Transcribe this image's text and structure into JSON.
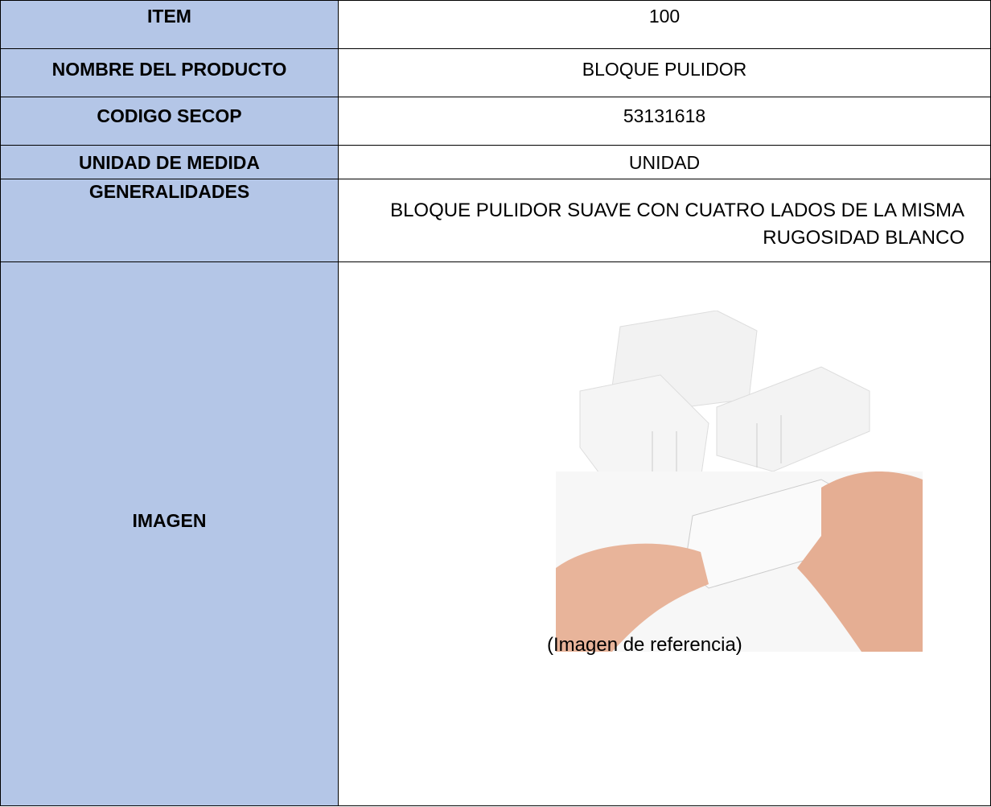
{
  "table": {
    "rows": [
      [
        "ITEM",
        "100"
      ],
      [
        "NOMBRE DEL PRODUCTO",
        "BLOQUE PULIDOR"
      ],
      [
        "CODIGO SECOP",
        "53131618"
      ],
      [
        "UNIDAD DE MEDIDA",
        "UNIDAD"
      ],
      [
        "GENERALIDADES",
        "BLOQUE PULIDOR SUAVE CON CUATRO LADOS DE LA MISMA RUGOSIDAD BLANCO"
      ],
      [
        "IMAGEN"
      ]
    ],
    "image_caption": "(Imagen de referencia)"
  }
}
